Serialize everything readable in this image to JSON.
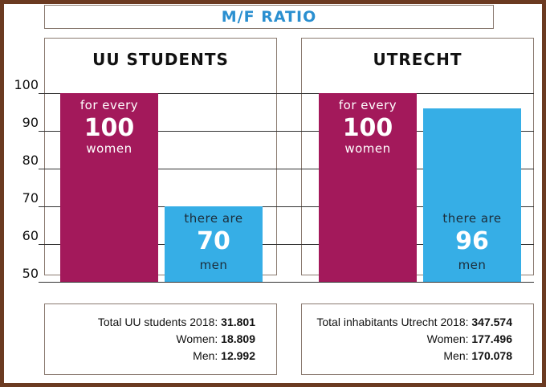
{
  "title": "M/F RATIO",
  "colors": {
    "women": "#a3195b",
    "men": "#36aee6",
    "frame": "#6b3a21",
    "title": "#2a8fd0"
  },
  "chart_data": {
    "type": "bar",
    "ylim": [
      50,
      105
    ],
    "yticks": [
      "50",
      "60",
      "70",
      "80",
      "90",
      "100"
    ],
    "grid": true,
    "panels": [
      {
        "title": "UU STUDENTS",
        "categories": [
          "women",
          "men"
        ],
        "values": [
          100,
          70
        ],
        "women_label": {
          "top": "for every",
          "number": "100",
          "bottom": "women"
        },
        "men_label": {
          "top": "there are",
          "number": "70",
          "bottom": "men"
        }
      },
      {
        "title": "UTRECHT",
        "categories": [
          "women",
          "men"
        ],
        "values": [
          100,
          96
        ],
        "women_label": {
          "top": "for every",
          "number": "100",
          "bottom": "women"
        },
        "men_label": {
          "top": "there are",
          "number": "96",
          "bottom": "men"
        }
      }
    ]
  },
  "stats": {
    "left": [
      {
        "label": "Total UU students 2018: ",
        "value": "31.801"
      },
      {
        "label": "Women: ",
        "value": "18.809"
      },
      {
        "label": "Men: ",
        "value": "12.992"
      }
    ],
    "right": [
      {
        "label": "Total inhabitants Utrecht 2018: ",
        "value": "347.574"
      },
      {
        "label": "Women: ",
        "value": "177.496"
      },
      {
        "label": "Men: ",
        "value": "170.078"
      }
    ]
  }
}
